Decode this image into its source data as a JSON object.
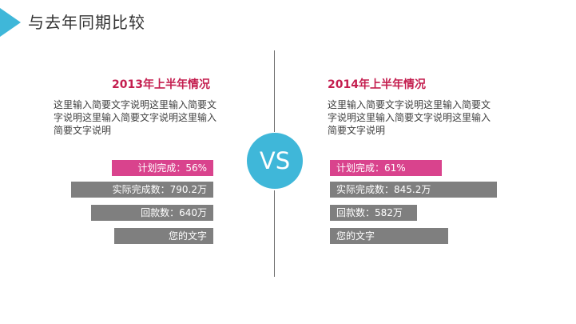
{
  "header": {
    "title": "与去年同期比较"
  },
  "center": {
    "vs_label": "VS"
  },
  "left": {
    "year_title": "2013年上半年情况",
    "description": "这里输入简要文字说明这里输入简要文字说明这里输入简要文字说明这里输入简要文字说明",
    "bars": [
      {
        "label": "计划完成：56%",
        "color": "#d9438d"
      },
      {
        "label": "实际完成数：790.2万",
        "color": "#7f7f7f"
      },
      {
        "label": "回款数：640万",
        "color": "#7f7f7f"
      },
      {
        "label": "您的文字",
        "color": "#7f7f7f"
      }
    ]
  },
  "right": {
    "year_title": "2014年上半年情况",
    "description": "这里输入简要文字说明这里输入简要文字说明这里输入简要文字说明这里输入简要文字说明",
    "bars": [
      {
        "label": "计划完成：61%",
        "color": "#d9438d"
      },
      {
        "label": "实际完成数：845.2万",
        "color": "#7f7f7f"
      },
      {
        "label": "回款数：582万",
        "color": "#7f7f7f"
      },
      {
        "label": "您的文字",
        "color": "#7f7f7f"
      }
    ]
  },
  "colors": {
    "accent": "#3fb7d9",
    "highlight": "#d9438d",
    "bar_gray": "#7f7f7f",
    "year_red": "#c41e4f"
  }
}
